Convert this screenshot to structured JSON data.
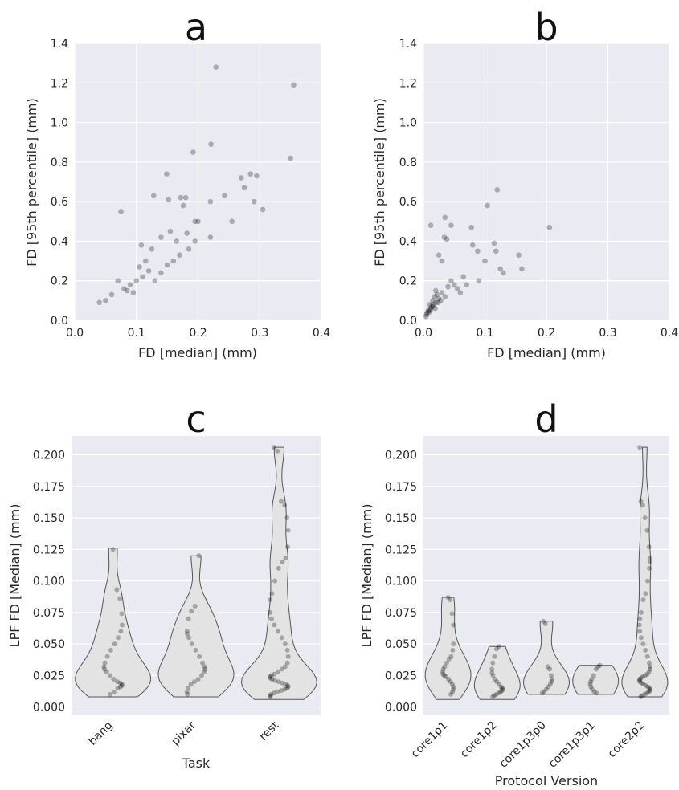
{
  "chart_data": [
    {
      "type": "scatter",
      "panel_label": "a",
      "xlabel": "FD [median] (mm)",
      "ylabel": "FD [95th percentile] (mm)",
      "xlim": [
        0.0,
        0.4
      ],
      "ylim": [
        0.0,
        1.4
      ],
      "xticks": [
        "0.0",
        "0.1",
        "0.2",
        "0.3",
        "0.4"
      ],
      "yticks": [
        "0.0",
        "0.2",
        "0.4",
        "0.6",
        "0.8",
        "1.0",
        "1.2",
        "1.4"
      ],
      "grid": true,
      "points": [
        {
          "x": 0.229,
          "y": 1.28
        },
        {
          "x": 0.355,
          "y": 1.19
        },
        {
          "x": 0.221,
          "y": 0.89
        },
        {
          "x": 0.192,
          "y": 0.85
        },
        {
          "x": 0.35,
          "y": 0.82
        },
        {
          "x": 0.149,
          "y": 0.74
        },
        {
          "x": 0.285,
          "y": 0.74
        },
        {
          "x": 0.27,
          "y": 0.72
        },
        {
          "x": 0.295,
          "y": 0.73
        },
        {
          "x": 0.275,
          "y": 0.67
        },
        {
          "x": 0.128,
          "y": 0.63
        },
        {
          "x": 0.243,
          "y": 0.63
        },
        {
          "x": 0.172,
          "y": 0.62
        },
        {
          "x": 0.18,
          "y": 0.62
        },
        {
          "x": 0.152,
          "y": 0.61
        },
        {
          "x": 0.291,
          "y": 0.6
        },
        {
          "x": 0.22,
          "y": 0.6
        },
        {
          "x": 0.176,
          "y": 0.58
        },
        {
          "x": 0.305,
          "y": 0.56
        },
        {
          "x": 0.075,
          "y": 0.55
        },
        {
          "x": 0.195,
          "y": 0.5
        },
        {
          "x": 0.255,
          "y": 0.5
        },
        {
          "x": 0.2,
          "y": 0.5
        },
        {
          "x": 0.182,
          "y": 0.44
        },
        {
          "x": 0.155,
          "y": 0.45
        },
        {
          "x": 0.14,
          "y": 0.42
        },
        {
          "x": 0.165,
          "y": 0.4
        },
        {
          "x": 0.195,
          "y": 0.4
        },
        {
          "x": 0.22,
          "y": 0.42
        },
        {
          "x": 0.108,
          "y": 0.38
        },
        {
          "x": 0.125,
          "y": 0.36
        },
        {
          "x": 0.185,
          "y": 0.36
        },
        {
          "x": 0.07,
          "y": 0.2
        },
        {
          "x": 0.085,
          "y": 0.15
        },
        {
          "x": 0.1,
          "y": 0.2
        },
        {
          "x": 0.12,
          "y": 0.25
        },
        {
          "x": 0.15,
          "y": 0.28
        },
        {
          "x": 0.05,
          "y": 0.1
        },
        {
          "x": 0.04,
          "y": 0.09
        },
        {
          "x": 0.06,
          "y": 0.13
        },
        {
          "x": 0.09,
          "y": 0.18
        },
        {
          "x": 0.11,
          "y": 0.22
        },
        {
          "x": 0.13,
          "y": 0.2
        },
        {
          "x": 0.16,
          "y": 0.3
        },
        {
          "x": 0.17,
          "y": 0.33
        },
        {
          "x": 0.08,
          "y": 0.16
        },
        {
          "x": 0.095,
          "y": 0.14
        },
        {
          "x": 0.105,
          "y": 0.27
        },
        {
          "x": 0.115,
          "y": 0.3
        },
        {
          "x": 0.14,
          "y": 0.24
        }
      ]
    },
    {
      "type": "scatter",
      "panel_label": "b",
      "xlabel": "FD [median] (mm)",
      "ylabel": "FD [95th percentile] (mm)",
      "xlim": [
        0.0,
        0.4
      ],
      "ylim": [
        0.0,
        1.4
      ],
      "xticks": [
        "0.0",
        "0.1",
        "0.2",
        "0.3",
        "0.4"
      ],
      "yticks": [
        "0.0",
        "0.2",
        "0.4",
        "0.6",
        "0.8",
        "1.0",
        "1.2",
        "1.4"
      ],
      "grid": true,
      "points": [
        {
          "x": 0.12,
          "y": 0.66
        },
        {
          "x": 0.104,
          "y": 0.58
        },
        {
          "x": 0.035,
          "y": 0.52
        },
        {
          "x": 0.012,
          "y": 0.48
        },
        {
          "x": 0.045,
          "y": 0.48
        },
        {
          "x": 0.078,
          "y": 0.47
        },
        {
          "x": 0.205,
          "y": 0.47
        },
        {
          "x": 0.034,
          "y": 0.42
        },
        {
          "x": 0.038,
          "y": 0.41
        },
        {
          "x": 0.115,
          "y": 0.39
        },
        {
          "x": 0.08,
          "y": 0.38
        },
        {
          "x": 0.118,
          "y": 0.35
        },
        {
          "x": 0.088,
          "y": 0.35
        },
        {
          "x": 0.155,
          "y": 0.33
        },
        {
          "x": 0.025,
          "y": 0.33
        },
        {
          "x": 0.1,
          "y": 0.3
        },
        {
          "x": 0.03,
          "y": 0.3
        },
        {
          "x": 0.16,
          "y": 0.26
        },
        {
          "x": 0.125,
          "y": 0.26
        },
        {
          "x": 0.13,
          "y": 0.24
        },
        {
          "x": 0.065,
          "y": 0.22
        },
        {
          "x": 0.09,
          "y": 0.2
        },
        {
          "x": 0.05,
          "y": 0.18
        },
        {
          "x": 0.02,
          "y": 0.15
        },
        {
          "x": 0.015,
          "y": 0.1
        },
        {
          "x": 0.01,
          "y": 0.08
        },
        {
          "x": 0.008,
          "y": 0.05
        },
        {
          "x": 0.006,
          "y": 0.04
        },
        {
          "x": 0.018,
          "y": 0.12
        },
        {
          "x": 0.025,
          "y": 0.11
        },
        {
          "x": 0.03,
          "y": 0.14
        },
        {
          "x": 0.04,
          "y": 0.17
        },
        {
          "x": 0.012,
          "y": 0.06
        },
        {
          "x": 0.015,
          "y": 0.07
        },
        {
          "x": 0.02,
          "y": 0.09
        },
        {
          "x": 0.022,
          "y": 0.13
        },
        {
          "x": 0.005,
          "y": 0.03
        },
        {
          "x": 0.004,
          "y": 0.02
        },
        {
          "x": 0.028,
          "y": 0.1
        },
        {
          "x": 0.035,
          "y": 0.12
        },
        {
          "x": 0.045,
          "y": 0.2
        },
        {
          "x": 0.055,
          "y": 0.16
        },
        {
          "x": 0.06,
          "y": 0.14
        },
        {
          "x": 0.07,
          "y": 0.18
        },
        {
          "x": 0.009,
          "y": 0.04
        },
        {
          "x": 0.011,
          "y": 0.05
        },
        {
          "x": 0.013,
          "y": 0.07
        },
        {
          "x": 0.016,
          "y": 0.08
        },
        {
          "x": 0.019,
          "y": 0.06
        },
        {
          "x": 0.024,
          "y": 0.09
        }
      ]
    },
    {
      "type": "violin",
      "panel_label": "c",
      "xlabel": "Task",
      "ylabel": "LPF FD [Median] (mm)",
      "ylim": [
        -0.006,
        0.215
      ],
      "yticks": [
        "0.000",
        "0.025",
        "0.050",
        "0.075",
        "0.100",
        "0.125",
        "0.150",
        "0.175",
        "0.200"
      ],
      "grid": true,
      "categories": [
        "bang",
        "pixar",
        "rest"
      ],
      "ranges": [
        [
          0.008,
          0.126
        ],
        [
          0.008,
          0.12
        ],
        [
          0.006,
          0.206
        ]
      ],
      "points": [
        [
          0.125,
          0.093,
          0.086,
          0.074,
          0.065,
          0.06,
          0.055,
          0.05,
          0.045,
          0.04,
          0.035,
          0.032,
          0.03,
          0.028,
          0.025,
          0.022,
          0.02,
          0.019,
          0.018,
          0.017,
          0.016,
          0.015,
          0.012,
          0.01
        ],
        [
          0.12,
          0.08,
          0.076,
          0.07,
          0.06,
          0.058,
          0.055,
          0.05,
          0.045,
          0.04,
          0.035,
          0.032,
          0.03,
          0.028,
          0.025,
          0.022,
          0.02,
          0.018,
          0.015,
          0.012,
          0.01
        ],
        [
          0.206,
          0.203,
          0.163,
          0.16,
          0.15,
          0.14,
          0.127,
          0.118,
          0.115,
          0.11,
          0.1,
          0.09,
          0.085,
          0.075,
          0.07,
          0.065,
          0.06,
          0.055,
          0.05,
          0.045,
          0.04,
          0.035,
          0.032,
          0.03,
          0.028,
          0.026,
          0.025,
          0.024,
          0.023,
          0.022,
          0.021,
          0.02,
          0.019,
          0.018,
          0.017,
          0.016,
          0.015,
          0.014,
          0.013,
          0.012,
          0.011,
          0.01,
          0.009,
          0.008
        ]
      ]
    },
    {
      "type": "violin",
      "panel_label": "d",
      "xlabel": "Protocol Version",
      "ylabel": "LPF FD [Median] (mm)",
      "ylim": [
        -0.006,
        0.215
      ],
      "yticks": [
        "0.000",
        "0.025",
        "0.050",
        "0.075",
        "0.100",
        "0.125",
        "0.150",
        "0.175",
        "0.200"
      ],
      "grid": true,
      "categories": [
        "core1p1",
        "core1p2",
        "core1p3p0",
        "core1p3p1",
        "core2p2"
      ],
      "ranges": [
        [
          0.006,
          0.087
        ],
        [
          0.006,
          0.048
        ],
        [
          0.01,
          0.068
        ],
        [
          0.01,
          0.033
        ],
        [
          0.008,
          0.206
        ]
      ],
      "points": [
        [
          0.087,
          0.085,
          0.074,
          0.065,
          0.05,
          0.045,
          0.04,
          0.038,
          0.035,
          0.032,
          0.03,
          0.028,
          0.026,
          0.025,
          0.024,
          0.022,
          0.02,
          0.018,
          0.016,
          0.014,
          0.012,
          0.01
        ],
        [
          0.048,
          0.046,
          0.04,
          0.035,
          0.03,
          0.027,
          0.025,
          0.022,
          0.02,
          0.018,
          0.016,
          0.015,
          0.014,
          0.013,
          0.012,
          0.011,
          0.01,
          0.009,
          0.008
        ],
        [
          0.068,
          0.066,
          0.032,
          0.03,
          0.025,
          0.022,
          0.02,
          0.018,
          0.016,
          0.014,
          0.012,
          0.011
        ],
        [
          0.033,
          0.032,
          0.03,
          0.025,
          0.022,
          0.02,
          0.018,
          0.016,
          0.014,
          0.012,
          0.011
        ],
        [
          0.206,
          0.163,
          0.16,
          0.15,
          0.14,
          0.127,
          0.118,
          0.115,
          0.11,
          0.1,
          0.09,
          0.085,
          0.075,
          0.07,
          0.065,
          0.06,
          0.055,
          0.05,
          0.045,
          0.04,
          0.035,
          0.032,
          0.03,
          0.028,
          0.026,
          0.025,
          0.024,
          0.023,
          0.022,
          0.021,
          0.02,
          0.019,
          0.018,
          0.017,
          0.016,
          0.015,
          0.014,
          0.013,
          0.012,
          0.011,
          0.01,
          0.009,
          0.008
        ]
      ]
    }
  ]
}
